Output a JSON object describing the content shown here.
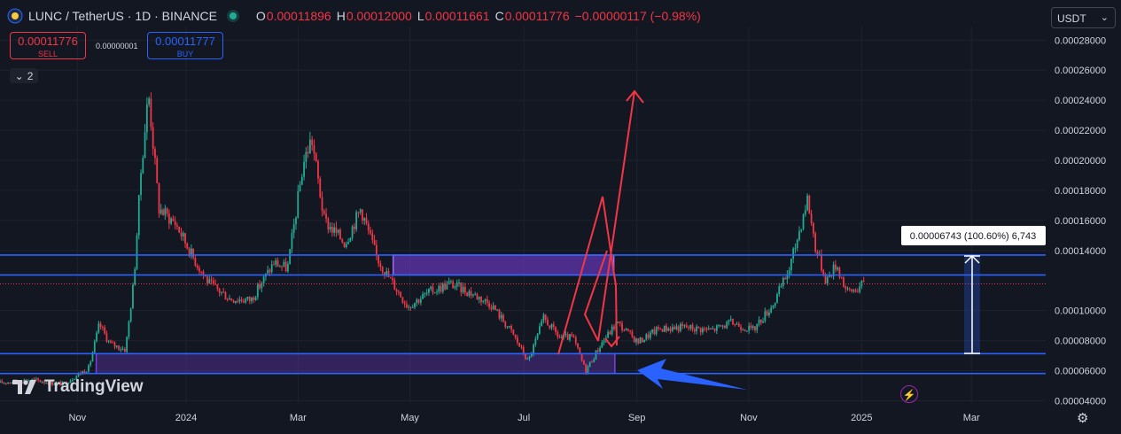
{
  "header": {
    "symbol": "LUNC / TetherUS · 1D · BINANCE",
    "open_label": "O",
    "open": "0.00011896",
    "high_label": "H",
    "high": "0.00012000",
    "low_label": "L",
    "low": "0.00011661",
    "close_label": "C",
    "close": "0.00011776",
    "change": "−0.00000117 (−0.98%)"
  },
  "trade": {
    "sell_price": "0.00011776",
    "sell_label": "SELL",
    "spread": "0.00000001",
    "buy_price": "0.00011777",
    "buy_label": "BUY"
  },
  "indicators_toggle": {
    "count": "2"
  },
  "currency_selector": "USDT",
  "brand": "TradingView",
  "colors": {
    "bg": "#131722",
    "up": "#22ab94",
    "down": "#f23645",
    "accent": "#2962ff",
    "zone": "#7b3fe4"
  },
  "chart_data": {
    "type": "candlestick",
    "ylim": [
      3.85e-05,
      0.000289
    ],
    "y_ticks": [
      "0.00028000",
      "0.00026000",
      "0.00024000",
      "0.00022000",
      "0.00020000",
      "0.00018000",
      "0.00016000",
      "0.00014000",
      "0.00010000",
      "0.00008000",
      "0.00006000",
      "0.00004000"
    ],
    "x_ticks": [
      {
        "label": "Nov",
        "t": 0.074
      },
      {
        "label": "2024",
        "t": 0.178
      },
      {
        "label": "Mar",
        "t": 0.285
      },
      {
        "label": "May",
        "t": 0.392
      },
      {
        "label": "Jul",
        "t": 0.501
      },
      {
        "label": "Sep",
        "t": 0.609
      },
      {
        "label": "Nov",
        "t": 0.716
      },
      {
        "label": "2025",
        "t": 0.824
      },
      {
        "label": "Mar",
        "t": 0.929
      }
    ],
    "price_path": [
      [
        0.0,
        5.2e-05
      ],
      [
        0.03,
        5.4e-05
      ],
      [
        0.06,
        5.1e-05
      ],
      [
        0.085,
        6.2e-05
      ],
      [
        0.095,
        9.1e-05
      ],
      [
        0.105,
        7.8e-05
      ],
      [
        0.12,
        7.4e-05
      ],
      [
        0.128,
        0.00012
      ],
      [
        0.135,
        0.000195
      ],
      [
        0.142,
        0.000245
      ],
      [
        0.152,
        0.000168
      ],
      [
        0.168,
        0.000158
      ],
      [
        0.185,
        0.000135
      ],
      [
        0.2,
        0.000118
      ],
      [
        0.22,
        0.000108
      ],
      [
        0.24,
        0.000107
      ],
      [
        0.262,
        0.000132
      ],
      [
        0.275,
        0.000128
      ],
      [
        0.29,
        0.000198
      ],
      [
        0.298,
        0.000215
      ],
      [
        0.31,
        0.00016
      ],
      [
        0.33,
        0.000145
      ],
      [
        0.345,
        0.000168
      ],
      [
        0.36,
        0.000136
      ],
      [
        0.37,
        0.000124
      ],
      [
        0.39,
        0.000103
      ],
      [
        0.41,
        0.000112
      ],
      [
        0.43,
        0.000118
      ],
      [
        0.45,
        0.000112
      ],
      [
        0.47,
        0.000104
      ],
      [
        0.49,
        8.5e-05
      ],
      [
        0.505,
        6.6e-05
      ],
      [
        0.52,
        9.5e-05
      ],
      [
        0.535,
        8.2e-05
      ],
      [
        0.548,
        8.2e-05
      ],
      [
        0.56,
        6e-05
      ],
      [
        0.575,
        7.8e-05
      ],
      [
        0.59,
        9.2e-05
      ],
      [
        0.61,
        7.9e-05
      ],
      [
        0.63,
        8.8e-05
      ],
      [
        0.655,
        8.9e-05
      ],
      [
        0.68,
        8.7e-05
      ],
      [
        0.7,
        9.2e-05
      ],
      [
        0.72,
        8.7e-05
      ],
      [
        0.74,
        0.000105
      ],
      [
        0.755,
        0.000128
      ],
      [
        0.765,
        0.000155
      ],
      [
        0.772,
        0.000175
      ],
      [
        0.78,
        0.000142
      ],
      [
        0.79,
        0.00012
      ],
      [
        0.8,
        0.000131
      ],
      [
        0.81,
        0.000112
      ],
      [
        0.82,
        0.000115
      ],
      [
        0.826,
        0.00011776
      ]
    ],
    "horizontal_levels": [
      {
        "price": "0.00013695",
        "value": 0.00013695
      },
      {
        "price": "0.00012372",
        "value": 0.00012372
      },
      {
        "price": "0.00007134",
        "value": 7.134e-05
      },
      {
        "price": "0.00005812",
        "value": 5.812e-05
      }
    ],
    "current_price": {
      "label": "0.00011776",
      "value": 0.00011776
    },
    "measure_label": "0.00006743 (100.60%) 6,743"
  }
}
